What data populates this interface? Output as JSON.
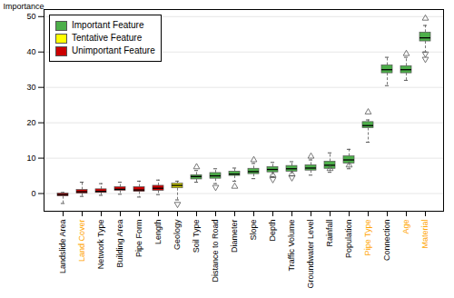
{
  "chart_data": {
    "type": "box",
    "categories": [
      "Landslide Area",
      "Land Cover",
      "Network Type",
      "Building Area",
      "Pipe Form",
      "Length",
      "Geology",
      "Soil Type",
      "Distance to Road",
      "Diameter",
      "Slope",
      "Depth",
      "Traffic Volume",
      "Groundwater Level",
      "Rainfall",
      "Population",
      "Pipe Type",
      "Connection",
      "Age",
      "Material"
    ],
    "label_colors": [
      "black",
      "orange",
      "black",
      "black",
      "black",
      "black",
      "black",
      "black",
      "black",
      "black",
      "black",
      "black",
      "black",
      "black",
      "black",
      "black",
      "orange",
      "black",
      "orange",
      "orange"
    ],
    "colors": [
      "#cc0000",
      "#cc0000",
      "#cc0000",
      "#cc0000",
      "#cc0000",
      "#cc0000",
      "#cccc00",
      "#4daf4a",
      "#4daf4a",
      "#4daf4a",
      "#4daf4a",
      "#4daf4a",
      "#4daf4a",
      "#4daf4a",
      "#4daf4a",
      "#4daf4a",
      "#4daf4a",
      "#4daf4a",
      "#4daf4a",
      "#4daf4a"
    ],
    "whislo": [
      -2.8,
      -0.8,
      -0.5,
      -0.2,
      -1.0,
      -0.3,
      -1.8,
      3.2,
      2.8,
      3.5,
      4.2,
      4.8,
      5.0,
      5.2,
      6.0,
      7.0,
      14.5,
      30.5,
      32.0,
      40.0
    ],
    "q1": [
      -0.8,
      0.0,
      0.2,
      0.8,
      0.5,
      0.8,
      1.5,
      4.0,
      4.2,
      5.0,
      5.5,
      6.0,
      6.2,
      6.5,
      7.0,
      8.5,
      18.5,
      34.0,
      34.0,
      43.0
    ],
    "med": [
      -0.3,
      0.5,
      0.6,
      1.2,
      1.0,
      1.5,
      2.3,
      4.8,
      5.0,
      5.5,
      6.2,
      6.8,
      7.0,
      7.2,
      8.0,
      9.5,
      19.2,
      35.0,
      35.0,
      44.0
    ],
    "q3": [
      0.0,
      1.0,
      1.2,
      1.8,
      1.8,
      2.2,
      2.8,
      5.2,
      5.8,
      6.2,
      7.0,
      7.5,
      7.8,
      8.0,
      9.0,
      10.5,
      20.2,
      36.2,
      36.0,
      45.5
    ],
    "whishi": [
      0.3,
      3.2,
      2.8,
      3.2,
      3.5,
      3.8,
      3.5,
      6.5,
      7.0,
      7.2,
      8.5,
      8.8,
      9.0,
      9.5,
      11.5,
      12.5,
      20.8,
      38.5,
      38.5,
      47.5
    ],
    "fliers_lo": [
      [],
      [],
      [],
      [],
      [],
      [],
      [
        -3.0
      ],
      [],
      [
        1.8
      ],
      [],
      [],
      [
        4.0
      ],
      [
        4.5
      ],
      [],
      [],
      [],
      [],
      [],
      [],
      [
        38.0,
        39.5
      ]
    ],
    "fliers_hi": [
      [],
      [],
      [],
      [],
      [],
      [],
      [],
      [
        7.5
      ],
      [],
      [
        2.0
      ],
      [
        9.5
      ],
      [
        5.2
      ],
      [
        5.5
      ],
      [
        10.5
      ],
      [
        7.0
      ],
      [
        8.0
      ],
      [
        23.0
      ],
      [],
      [
        39.5
      ],
      [
        49.5
      ]
    ],
    "ylabel": "Importance",
    "ylim": [
      -5,
      52
    ],
    "yticks": [
      0,
      10,
      20,
      30,
      40,
      50
    ],
    "grid": true,
    "legend": "upper left",
    "legend_items": [
      {
        "name": "Important Feature",
        "color": "#4daf4a"
      },
      {
        "name": "Tentative Feature",
        "color": "#ffff00"
      },
      {
        "name": "Unimportant Feature",
        "color": "#cc0000"
      }
    ]
  }
}
